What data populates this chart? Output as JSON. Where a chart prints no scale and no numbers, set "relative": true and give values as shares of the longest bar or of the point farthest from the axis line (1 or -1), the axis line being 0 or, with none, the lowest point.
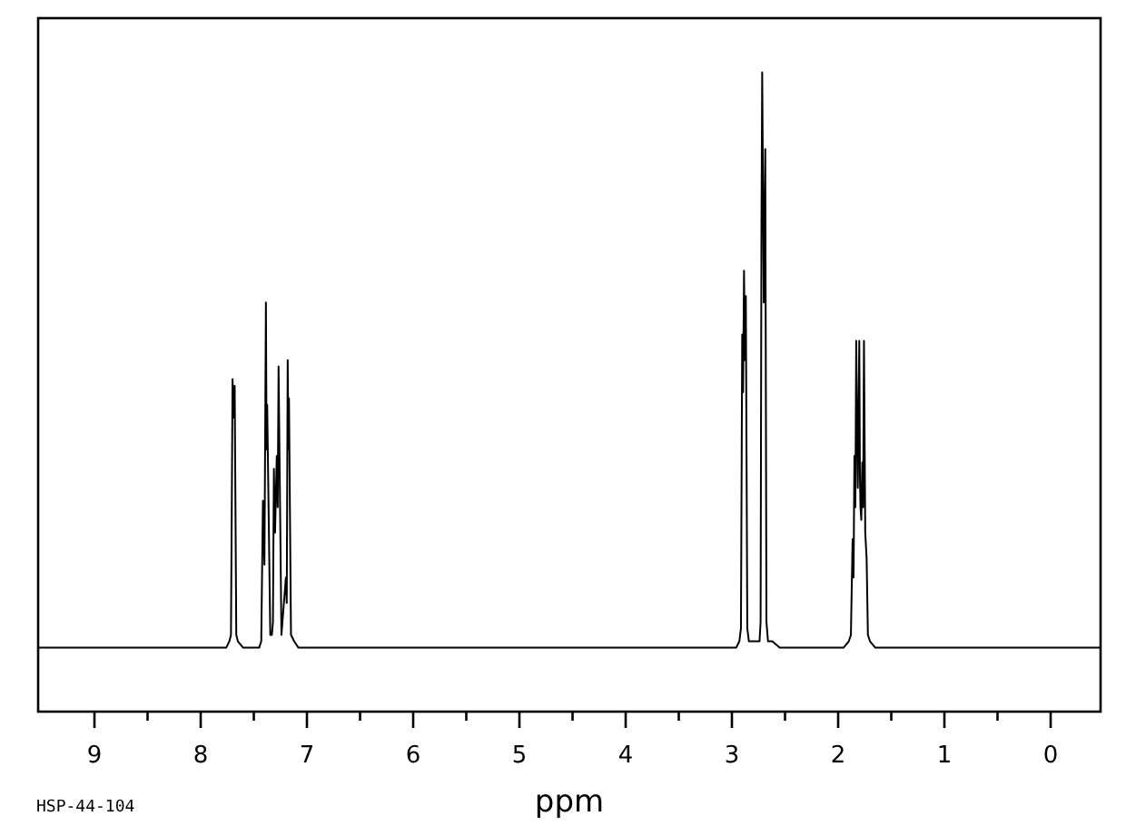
{
  "chart_data": {
    "type": "line",
    "xlabel": "ppm",
    "annotations": [
      "HSP-44-104"
    ],
    "relative": true,
    "tick_labels": "x",
    "xlim": [
      9.53,
      -0.47
    ],
    "xticks": [
      9,
      {
        "value": 8.5,
        "label": null
      },
      8,
      {
        "value": 7.5,
        "label": null
      },
      7,
      {
        "value": 6.5,
        "label": null
      },
      6,
      {
        "value": 5.5,
        "label": null
      },
      5,
      {
        "value": 4.5,
        "label": null
      },
      4,
      {
        "value": 3.5,
        "label": null
      },
      3,
      {
        "value": 2.5,
        "label": null
      },
      2,
      {
        "value": 1.5,
        "label": null
      },
      1,
      {
        "value": 0.5,
        "label": null
      },
      0
    ],
    "x": [
      9.53,
      7.76,
      7.73,
      7.715,
      7.7,
      7.69,
      7.68,
      7.665,
      7.65,
      7.6,
      7.45,
      7.43,
      7.414,
      7.4,
      7.386,
      7.38,
      7.374,
      7.345,
      7.33,
      7.32,
      7.311,
      7.3,
      7.284,
      7.275,
      7.267,
      7.24,
      7.198,
      7.19,
      7.181,
      7.175,
      7.169,
      7.15,
      7.12,
      7.08,
      2.96,
      2.93,
      2.915,
      2.903,
      2.895,
      2.886,
      2.878,
      2.869,
      2.855,
      2.84,
      2.78,
      2.74,
      2.73,
      2.722,
      2.715,
      2.7,
      2.686,
      2.675,
      2.66,
      2.62,
      2.55,
      1.95,
      1.9,
      1.88,
      1.864,
      1.855,
      1.847,
      1.838,
      1.83,
      1.815,
      1.801,
      1.795,
      1.79,
      1.782,
      1.773,
      1.765,
      1.757,
      1.745,
      1.732,
      1.72,
      1.7,
      1.65,
      1.6,
      -0.47
    ],
    "series": [
      {
        "color": "#000000",
        "values": [
          0.1,
          0.1,
          0.11,
          0.12,
          0.52,
          0.46,
          0.51,
          0.12,
          0.11,
          0.1,
          0.1,
          0.11,
          0.33,
          0.23,
          0.64,
          0.41,
          0.48,
          0.12,
          0.12,
          0.14,
          0.38,
          0.28,
          0.4,
          0.32,
          0.54,
          0.12,
          0.21,
          0.17,
          0.55,
          0.41,
          0.49,
          0.12,
          0.11,
          0.1,
          0.1,
          0.11,
          0.13,
          0.59,
          0.5,
          0.69,
          0.55,
          0.65,
          0.13,
          0.11,
          0.11,
          0.11,
          0.14,
          0.75,
          1,
          0.64,
          0.88,
          0.14,
          0.11,
          0.11,
          0.1,
          0.1,
          0.11,
          0.12,
          0.27,
          0.21,
          0.4,
          0.32,
          0.58,
          0.35,
          0.58,
          0.37,
          0.32,
          0.3,
          0.39,
          0.32,
          0.58,
          0.28,
          0.24,
          0.12,
          0.11,
          0.1,
          0.1,
          0.1
        ]
      }
    ]
  }
}
